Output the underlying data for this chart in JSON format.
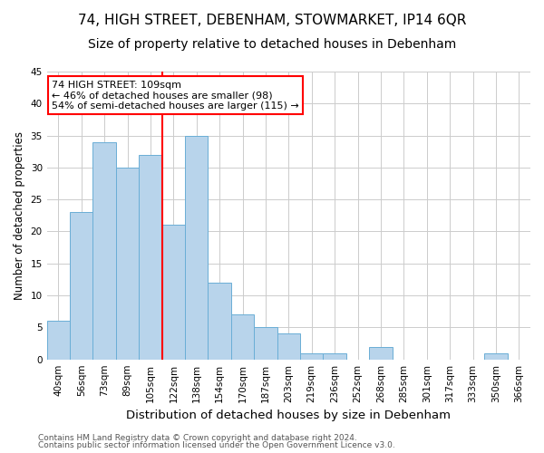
{
  "title": "74, HIGH STREET, DEBENHAM, STOWMARKET, IP14 6QR",
  "subtitle": "Size of property relative to detached houses in Debenham",
  "xlabel": "Distribution of detached houses by size in Debenham",
  "ylabel": "Number of detached properties",
  "bin_labels": [
    "40sqm",
    "56sqm",
    "73sqm",
    "89sqm",
    "105sqm",
    "122sqm",
    "138sqm",
    "154sqm",
    "170sqm",
    "187sqm",
    "203sqm",
    "219sqm",
    "236sqm",
    "252sqm",
    "268sqm",
    "285sqm",
    "301sqm",
    "317sqm",
    "333sqm",
    "350sqm",
    "366sqm"
  ],
  "bin_values": [
    6,
    23,
    34,
    30,
    32,
    21,
    35,
    12,
    7,
    5,
    4,
    1,
    1,
    0,
    2,
    0,
    0,
    0,
    0,
    1,
    0
  ],
  "bar_color": "#b8d4eb",
  "bar_edge_color": "#6aaed6",
  "grid_color": "#cccccc",
  "vline_x_idx": 4.5,
  "vline_color": "red",
  "annotation_line1": "74 HIGH STREET: 109sqm",
  "annotation_line2": "← 46% of detached houses are smaller (98)",
  "annotation_line3": "54% of semi-detached houses are larger (115) →",
  "ylim": [
    0,
    45
  ],
  "yticks": [
    0,
    5,
    10,
    15,
    20,
    25,
    30,
    35,
    40,
    45
  ],
  "footer1": "Contains HM Land Registry data © Crown copyright and database right 2024.",
  "footer2": "Contains public sector information licensed under the Open Government Licence v3.0.",
  "background_color": "#ffffff",
  "title_fontsize": 11,
  "subtitle_fontsize": 10,
  "xlabel_fontsize": 9.5,
  "ylabel_fontsize": 8.5,
  "tick_fontsize": 7.5,
  "annotation_fontsize": 8,
  "footer_fontsize": 6.5
}
